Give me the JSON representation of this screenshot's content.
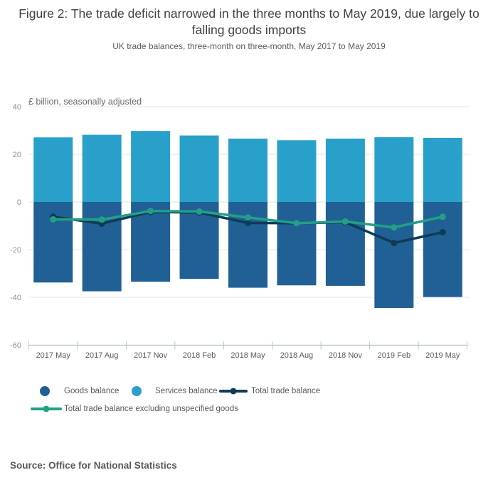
{
  "header": {
    "title": "Figure 2: The trade deficit narrowed in the three months to May 2019, due largely to falling goods imports",
    "subtitle": "UK trade balances, three-month on three-month, May 2017 to May 2019"
  },
  "source": "Source: Office for National Statistics",
  "chart_data": {
    "type": "bar+line",
    "title": "Figure 2: The trade deficit narrowed in the three months to May 2019, due largely to falling goods imports",
    "subtitle": "UK trade balances, three-month on three-month, May 2017 to May 2019",
    "unit_label": "£ billion, seasonally adjusted",
    "categories": [
      "2017 May",
      "2017 Aug",
      "2017 Nov",
      "2018 Feb",
      "2018 May",
      "2018 Aug",
      "2018 Nov",
      "2019 Feb",
      "2019 May"
    ],
    "bar_series": [
      {
        "name": "Goods balance",
        "color": "#216095",
        "values": [
          -33.8,
          -37.5,
          -33.5,
          -32.3,
          -36.0,
          -35.0,
          -35.2,
          -44.5,
          -39.9
        ]
      },
      {
        "name": "Services balance",
        "color": "#29a0ca",
        "values": [
          27.1,
          28.2,
          29.8,
          27.9,
          26.6,
          25.9,
          26.6,
          27.2,
          26.9
        ]
      }
    ],
    "line_series": [
      {
        "name": "Total trade balance",
        "color": "#0f3b57",
        "values": [
          -6.2,
          -9.1,
          -4.2,
          -4.4,
          -8.8,
          -8.9,
          -8.5,
          -17.2,
          -12.7
        ]
      },
      {
        "name": "Total trade balance excluding unspecified goods",
        "color": "#22a086",
        "values": [
          -7.3,
          -7.4,
          -3.8,
          -4.0,
          -6.5,
          -8.9,
          -8.2,
          -10.7,
          -6.2
        ]
      }
    ],
    "ylim": [
      -60,
      40
    ],
    "yticks": [
      40,
      20,
      0,
      -20,
      -40,
      -60
    ],
    "grid": true,
    "gridline_color": "#e6e6e6",
    "axis_color": "#b4c6d4",
    "ytick_label_color": "#8f8f8f",
    "xtick_label_color": "#595959",
    "legend_position": "bottom"
  }
}
